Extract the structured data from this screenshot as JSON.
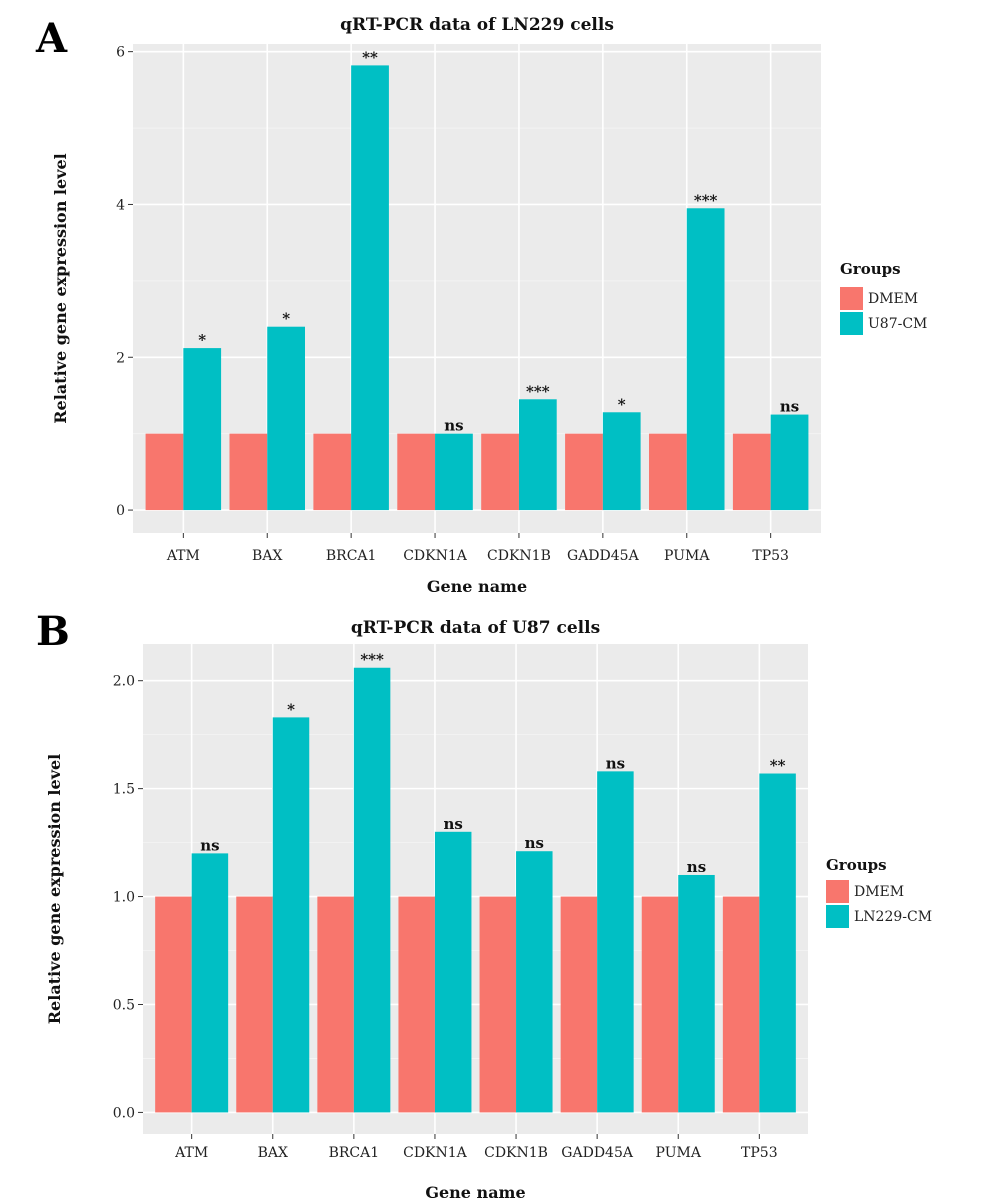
{
  "chart_data": [
    {
      "panel_label": "A",
      "type": "bar",
      "title": "qRT-PCR data of LN229 cells",
      "xlabel": "Gene name",
      "ylabel": "Relative gene expression level",
      "categories": [
        "ATM",
        "BAX",
        "BRCA1",
        "CDKN1A",
        "CDKN1B",
        "GADD45A",
        "PUMA",
        "TP53"
      ],
      "series": [
        {
          "name": "DMEM",
          "color": "#F8766D",
          "values": [
            1.0,
            1.0,
            1.0,
            1.0,
            1.0,
            1.0,
            1.0,
            1.0
          ]
        },
        {
          "name": "U87-CM",
          "color": "#00BFC4",
          "values": [
            2.12,
            2.4,
            5.82,
            1.0,
            1.45,
            1.28,
            3.95,
            1.25
          ]
        }
      ],
      "annotations": [
        "*",
        "*",
        "**",
        "ns",
        "***",
        "*",
        "***",
        "ns"
      ],
      "ylim": [
        -0.3,
        6.1
      ],
      "yticks": [
        0,
        2,
        4,
        6
      ],
      "ytick_labels": [
        "0",
        "2",
        "4",
        "6"
      ],
      "grid": true,
      "legend": {
        "title": "Groups",
        "position": "right"
      }
    },
    {
      "panel_label": "B",
      "type": "bar",
      "title": "qRT-PCR data of U87 cells",
      "xlabel": "Gene name",
      "ylabel": "Relative gene expression level",
      "categories": [
        "ATM",
        "BAX",
        "BRCA1",
        "CDKN1A",
        "CDKN1B",
        "GADD45A",
        "PUMA",
        "TP53"
      ],
      "series": [
        {
          "name": "DMEM",
          "color": "#F8766D",
          "values": [
            1.0,
            1.0,
            1.0,
            1.0,
            1.0,
            1.0,
            1.0,
            1.0
          ]
        },
        {
          "name": "LN229-CM",
          "color": "#00BFC4",
          "values": [
            1.2,
            1.83,
            2.06,
            1.3,
            1.21,
            1.58,
            1.1,
            1.57
          ]
        }
      ],
      "annotations": [
        "ns",
        "*",
        "***",
        "ns",
        "ns",
        "ns",
        "ns",
        "**"
      ],
      "ylim": [
        -0.1,
        2.17
      ],
      "yticks": [
        0.0,
        0.5,
        1.0,
        1.5,
        2.0
      ],
      "ytick_labels": [
        "0.0",
        "0.5",
        "1.0",
        "1.5",
        "2.0"
      ],
      "grid": true,
      "legend": {
        "title": "Groups",
        "position": "right"
      }
    }
  ]
}
